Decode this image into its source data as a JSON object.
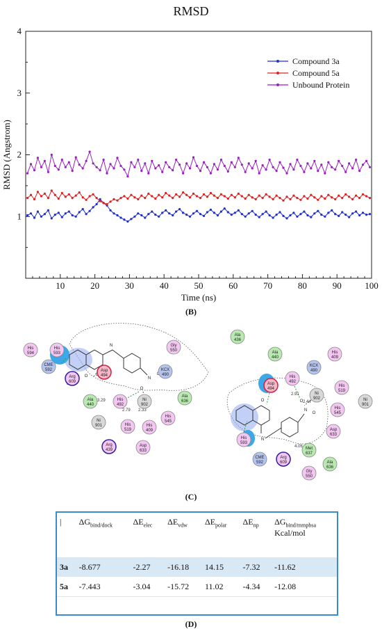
{
  "chart_data": {
    "type": "line",
    "title": "RMSD",
    "xlabel": "Time (ns)",
    "ylabel": "RMSD (Angstrom)",
    "xlim": [
      0,
      100
    ],
    "ylim": [
      0,
      4
    ],
    "xticks": [
      10,
      20,
      30,
      40,
      50,
      60,
      70,
      80,
      90,
      100
    ],
    "yticks": [
      1,
      2,
      3,
      4
    ],
    "grid": false,
    "legend_position": "top-right",
    "series": [
      {
        "name": "Compound 3a",
        "color": "#1f2fd0",
        "values": [
          1.02,
          1.05,
          0.98,
          1.08,
          1.0,
          1.04,
          1.1,
          0.97,
          1.03,
          1.06,
          0.99,
          1.05,
          1.08,
          1.02,
          1.0,
          1.07,
          1.12,
          1.04,
          1.09,
          1.15,
          1.2,
          1.28,
          1.22,
          1.18,
          1.1,
          1.05,
          1.02,
          0.98,
          0.95,
          0.92,
          0.96,
          1.0,
          1.05,
          1.02,
          0.98,
          1.04,
          1.08,
          1.03,
          1.0,
          1.06,
          1.1,
          1.05,
          1.02,
          1.08,
          1.12,
          1.06,
          1.03,
          1.0,
          1.05,
          1.09,
          1.04,
          1.01,
          1.07,
          1.11,
          1.06,
          1.02,
          1.08,
          1.13,
          1.07,
          1.03,
          1.06,
          1.1,
          1.04,
          1.0,
          1.05,
          1.09,
          1.03,
          0.99,
          1.04,
          1.08,
          1.02,
          0.98,
          1.03,
          1.07,
          1.01,
          0.97,
          1.02,
          1.06,
          1.0,
          1.04,
          1.08,
          1.02,
          0.99,
          1.05,
          1.09,
          1.03,
          1.0,
          1.06,
          1.1,
          1.04,
          1.01,
          1.07,
          1.03,
          0.99,
          1.05,
          1.08,
          1.02,
          1.06,
          1.03,
          1.04
        ]
      },
      {
        "name": "Compound 5a",
        "color": "#e02020",
        "values": [
          1.3,
          1.35,
          1.28,
          1.4,
          1.33,
          1.37,
          1.3,
          1.42,
          1.35,
          1.29,
          1.38,
          1.32,
          1.36,
          1.3,
          1.34,
          1.39,
          1.31,
          1.27,
          1.33,
          1.36,
          1.3,
          1.25,
          1.22,
          1.2,
          1.24,
          1.28,
          1.26,
          1.3,
          1.33,
          1.29,
          1.35,
          1.31,
          1.28,
          1.34,
          1.3,
          1.37,
          1.33,
          1.29,
          1.35,
          1.31,
          1.38,
          1.34,
          1.3,
          1.36,
          1.32,
          1.39,
          1.35,
          1.31,
          1.37,
          1.33,
          1.3,
          1.36,
          1.32,
          1.38,
          1.34,
          1.3,
          1.36,
          1.33,
          1.29,
          1.35,
          1.31,
          1.37,
          1.33,
          1.29,
          1.35,
          1.31,
          1.28,
          1.34,
          1.3,
          1.36,
          1.32,
          1.28,
          1.34,
          1.3,
          1.26,
          1.32,
          1.28,
          1.34,
          1.3,
          1.27,
          1.33,
          1.29,
          1.35,
          1.31,
          1.27,
          1.33,
          1.29,
          1.35,
          1.31,
          1.28,
          1.34,
          1.3,
          1.36,
          1.32,
          1.28,
          1.34,
          1.3,
          1.36,
          1.33,
          1.3
        ]
      },
      {
        "name": "Unbound Protein",
        "color": "#9a1fc0",
        "values": [
          1.7,
          1.85,
          1.75,
          1.95,
          1.8,
          1.9,
          1.72,
          2.0,
          1.82,
          1.76,
          1.92,
          1.8,
          1.88,
          1.74,
          1.96,
          1.84,
          1.78,
          1.9,
          2.05,
          1.86,
          1.8,
          1.75,
          1.92,
          1.7,
          1.85,
          1.78,
          1.95,
          1.82,
          1.76,
          1.65,
          1.88,
          1.8,
          1.92,
          1.74,
          1.86,
          1.7,
          1.9,
          1.78,
          1.83,
          1.72,
          1.88,
          1.8,
          1.75,
          1.92,
          1.84,
          1.7,
          1.86,
          1.78,
          1.96,
          1.82,
          1.74,
          1.88,
          1.8,
          1.7,
          1.85,
          1.76,
          1.92,
          1.82,
          1.73,
          1.88,
          1.8,
          1.95,
          1.84,
          1.72,
          1.86,
          1.78,
          1.9,
          1.7,
          1.83,
          1.76,
          1.92,
          1.8,
          1.74,
          1.88,
          1.79,
          1.7,
          1.85,
          1.76,
          1.92,
          1.82,
          1.72,
          1.86,
          1.78,
          1.9,
          1.74,
          1.84,
          1.7,
          1.88,
          1.8,
          1.76,
          1.9,
          1.82,
          1.72,
          1.86,
          1.78,
          1.92,
          1.74,
          1.84,
          1.9,
          1.8
        ]
      }
    ]
  },
  "panels": {
    "b": "(B)",
    "c": "(C)",
    "d": "(D)"
  },
  "interaction_diagram": {
    "left": {
      "residues": [
        {
          "name": "His",
          "num": "594",
          "kind": "polar"
        },
        {
          "name": "His",
          "num": "593",
          "kind": "polar"
        },
        {
          "name": "CME",
          "num": "592",
          "kind": "special"
        },
        {
          "name": "Arg",
          "num": "609",
          "kind": "charged"
        },
        {
          "name": "Ala",
          "num": "440",
          "kind": "hydrophobic"
        },
        {
          "name": "Asp",
          "num": "494",
          "kind": "negative"
        },
        {
          "name": "His",
          "num": "492",
          "kind": "polar"
        },
        {
          "name": "Ni",
          "num": "902",
          "kind": "metal"
        },
        {
          "name": "KCX",
          "num": "490",
          "kind": "special"
        },
        {
          "name": "Gly",
          "num": "550",
          "kind": "polar"
        },
        {
          "name": "Ala",
          "num": "636",
          "kind": "hydrophobic"
        },
        {
          "name": "His",
          "num": "545",
          "kind": "polar"
        },
        {
          "name": "Ni",
          "num": "901",
          "kind": "metal"
        },
        {
          "name": "His",
          "num": "519",
          "kind": "polar"
        },
        {
          "name": "His",
          "num": "409",
          "kind": "polar"
        },
        {
          "name": "Arg",
          "num": "439",
          "kind": "charged"
        },
        {
          "name": "Asp",
          "num": "633",
          "kind": "polar"
        }
      ],
      "distances": [
        "3.79",
        "3.29",
        "2.79",
        "2.33"
      ]
    },
    "right": {
      "residues": [
        {
          "name": "Ala",
          "num": "436",
          "kind": "hydrophobic"
        },
        {
          "name": "Ala",
          "num": "440",
          "kind": "hydrophobic"
        },
        {
          "name": "KCX",
          "num": "490",
          "kind": "special"
        },
        {
          "name": "His",
          "num": "409",
          "kind": "polar"
        },
        {
          "name": "Asp",
          "num": "494",
          "kind": "negative"
        },
        {
          "name": "His",
          "num": "492",
          "kind": "polar"
        },
        {
          "name": "His",
          "num": "519",
          "kind": "polar"
        },
        {
          "name": "Ni",
          "num": "902",
          "kind": "metal"
        },
        {
          "name": "Ni",
          "num": "901",
          "kind": "metal"
        },
        {
          "name": "His",
          "num": "545",
          "kind": "polar"
        },
        {
          "name": "Asp",
          "num": "633",
          "kind": "polar"
        },
        {
          "name": "His",
          "num": "593",
          "kind": "polar"
        },
        {
          "name": "Met",
          "num": "637",
          "kind": "hydrophobic"
        },
        {
          "name": "Ala",
          "num": "636",
          "kind": "hydrophobic"
        },
        {
          "name": "CME",
          "num": "592",
          "kind": "special"
        },
        {
          "name": "Arg",
          "num": "609",
          "kind": "charged"
        },
        {
          "name": "Gly",
          "num": "550",
          "kind": "polar"
        }
      ],
      "distances": [
        "2.91",
        "2.44",
        "4.06"
      ]
    },
    "colors": {
      "polar": "#f4c6f2",
      "hydrophobic": "#b8eab0",
      "special": "#b4c4ee",
      "metal": "#d8d8d8",
      "negative": "#f4b8c8",
      "charged": "#f4c6f2"
    }
  },
  "table": {
    "cols": [
      {
        "main": "|",
        "sub": "",
        "extra": ""
      },
      {
        "main": "ΔG",
        "sub": "bind/dock",
        "extra": ""
      },
      {
        "main": "ΔE",
        "sub": "elec",
        "extra": ""
      },
      {
        "main": "ΔE",
        "sub": "vdw",
        "extra": ""
      },
      {
        "main": "ΔE",
        "sub": "polar",
        "extra": ""
      },
      {
        "main": "ΔE",
        "sub": "np",
        "extra": ""
      },
      {
        "main": "ΔG",
        "sub": "bind/mmpbsa",
        "extra": "Kcal/mol"
      }
    ],
    "rows": [
      {
        "label": "3a",
        "values": [
          "-8.677",
          "-2.27",
          "-16.18",
          "14.15",
          "-7.32",
          "-11.62"
        ]
      },
      {
        "label": "5a",
        "values": [
          "-7.443",
          "-3.04",
          "-15.72",
          "11.02",
          "-4.34",
          "-12.08"
        ]
      }
    ]
  }
}
